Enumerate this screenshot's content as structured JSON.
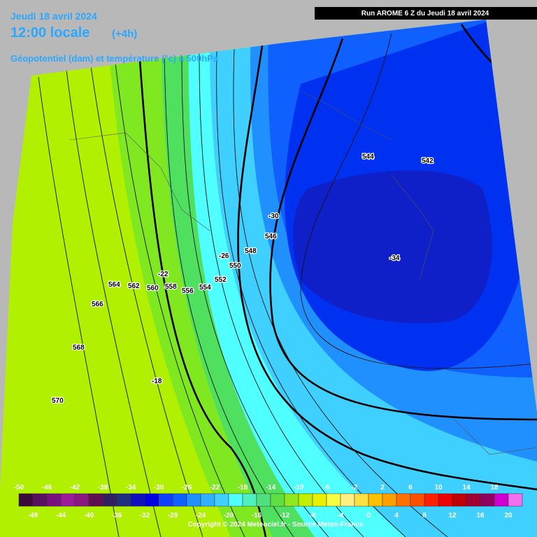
{
  "header": {
    "date": "Jeudi 18 avril 2024",
    "time": "12:00 locale",
    "offset": "(+4h)",
    "parameter": "Géopotentiel (dam) et température (°c) à 500hPa",
    "run": "Run AROME 6 Z du Jeudi 18 avril 2024"
  },
  "contour_labels": [
    "544",
    "542",
    "-30",
    "546",
    "548",
    "-26",
    "550",
    "-22",
    "552",
    "564",
    "562",
    "560",
    "558",
    "556",
    "554",
    "566",
    "568",
    "-18",
    "570",
    "-34"
  ],
  "colorbar": {
    "labels_top": [
      -50,
      -46,
      -42,
      -38,
      -34,
      -30,
      -26,
      -22,
      -18,
      -14,
      -10,
      -6,
      -2,
      2,
      6,
      10,
      14,
      18
    ],
    "labels_bottom": [
      -48,
      -44,
      -40,
      -36,
      -32,
      -28,
      -24,
      -20,
      -16,
      -12,
      -8,
      -4,
      0,
      4,
      8,
      12,
      16,
      20
    ],
    "colors": [
      "#3a0a3a",
      "#5a1060",
      "#7a1080",
      "#9a1a9a",
      "#8a1880",
      "#601050",
      "#302060",
      "#203080",
      "#1010c0",
      "#0000e0",
      "#1040ff",
      "#1060ff",
      "#2090ff",
      "#30b0ff",
      "#40d0ff",
      "#50ffff",
      "#50f0c0",
      "#50e080",
      "#60e040",
      "#90e820",
      "#c0f000",
      "#e8f000",
      "#f8ff40",
      "#fff080",
      "#ffe040",
      "#ffc000",
      "#ffa000",
      "#ff7000",
      "#ff5000",
      "#ff2000",
      "#ee0000",
      "#c00000",
      "#a00030",
      "#900060",
      "#d000d0",
      "#f070f0"
    ]
  },
  "footer": {
    "copyright": "Copyright © 2024 Meteociel.fr - Source Meteo-France"
  }
}
